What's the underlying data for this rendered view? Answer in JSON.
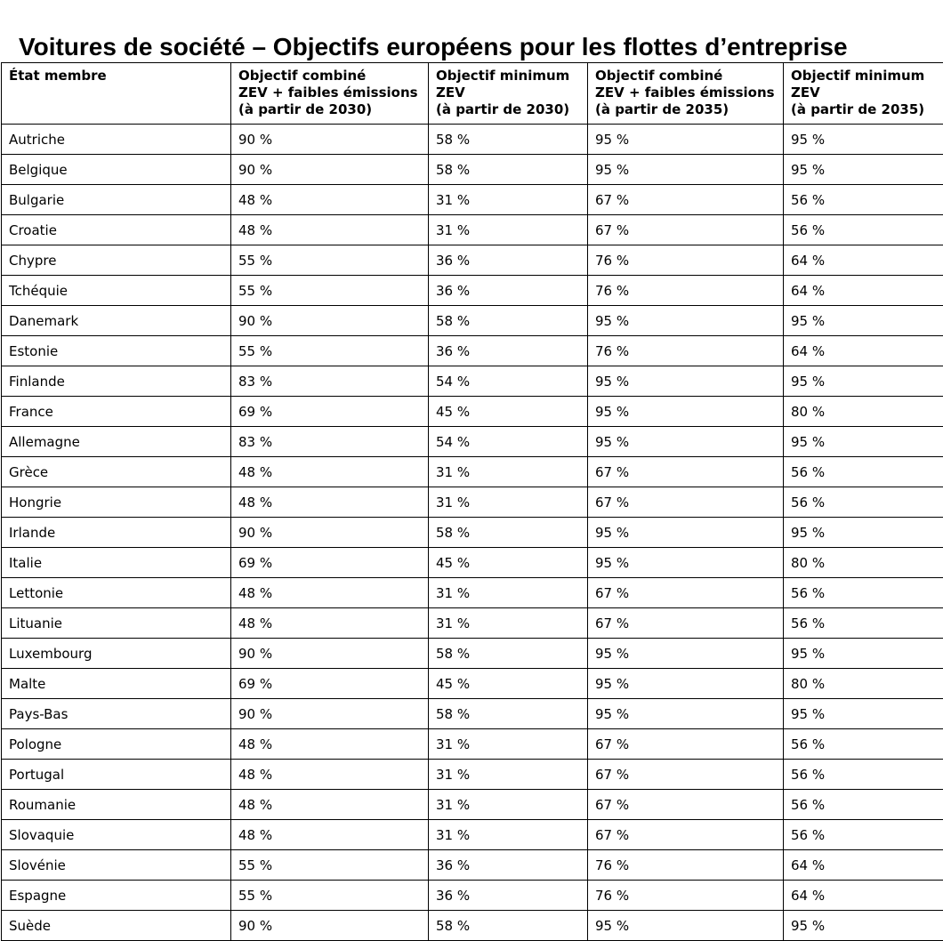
{
  "page": {
    "title": "Voitures de société – Objectifs européens pour les flottes d’entreprise"
  },
  "colors": {
    "text": "#000000",
    "border": "#000000",
    "background": "#ffffff"
  },
  "table": {
    "columns": [
      {
        "key": "state",
        "label": "État membre"
      },
      {
        "key": "combined_2030",
        "label": "Objectif combiné\nZEV + faibles émissions\n(à partir de 2030)"
      },
      {
        "key": "zev_min_2030",
        "label": "Objectif minimum\nZEV\n(à partir de 2030)"
      },
      {
        "key": "combined_2035",
        "label": "Objectif combiné\nZEV + faibles émissions\n(à partir de 2035)"
      },
      {
        "key": "zev_min_2035",
        "label": "Objectif minimum\nZEV\n(à partir de 2035)"
      }
    ],
    "rows": [
      {
        "state": "Autriche",
        "combined_2030": "90 %",
        "zev_min_2030": "58 %",
        "combined_2035": "95 %",
        "zev_min_2035": "95 %"
      },
      {
        "state": "Belgique",
        "combined_2030": "90 %",
        "zev_min_2030": "58 %",
        "combined_2035": "95 %",
        "zev_min_2035": "95 %"
      },
      {
        "state": "Bulgarie",
        "combined_2030": "48 %",
        "zev_min_2030": "31 %",
        "combined_2035": "67 %",
        "zev_min_2035": "56 %"
      },
      {
        "state": "Croatie",
        "combined_2030": "48 %",
        "zev_min_2030": "31 %",
        "combined_2035": "67 %",
        "zev_min_2035": "56 %"
      },
      {
        "state": "Chypre",
        "combined_2030": "55 %",
        "zev_min_2030": "36 %",
        "combined_2035": "76 %",
        "zev_min_2035": "64 %"
      },
      {
        "state": "Tchéquie",
        "combined_2030": "55 %",
        "zev_min_2030": "36 %",
        "combined_2035": "76 %",
        "zev_min_2035": "64 %"
      },
      {
        "state": "Danemark",
        "combined_2030": "90 %",
        "zev_min_2030": "58 %",
        "combined_2035": "95 %",
        "zev_min_2035": "95 %"
      },
      {
        "state": "Estonie",
        "combined_2030": "55 %",
        "zev_min_2030": "36 %",
        "combined_2035": "76 %",
        "zev_min_2035": "64 %"
      },
      {
        "state": "Finlande",
        "combined_2030": "83 %",
        "zev_min_2030": "54 %",
        "combined_2035": "95 %",
        "zev_min_2035": "95 %"
      },
      {
        "state": "France",
        "combined_2030": "69 %",
        "zev_min_2030": "45 %",
        "combined_2035": "95 %",
        "zev_min_2035": "80 %"
      },
      {
        "state": "Allemagne",
        "combined_2030": "83 %",
        "zev_min_2030": "54 %",
        "combined_2035": "95 %",
        "zev_min_2035": "95 %"
      },
      {
        "state": "Grèce",
        "combined_2030": "48 %",
        "zev_min_2030": "31 %",
        "combined_2035": "67 %",
        "zev_min_2035": "56 %"
      },
      {
        "state": "Hongrie",
        "combined_2030": "48 %",
        "zev_min_2030": "31 %",
        "combined_2035": "67 %",
        "zev_min_2035": "56 %"
      },
      {
        "state": "Irlande",
        "combined_2030": "90 %",
        "zev_min_2030": "58 %",
        "combined_2035": "95 %",
        "zev_min_2035": "95 %"
      },
      {
        "state": "Italie",
        "combined_2030": "69 %",
        "zev_min_2030": "45 %",
        "combined_2035": "95 %",
        "zev_min_2035": "80 %"
      },
      {
        "state": "Lettonie",
        "combined_2030": "48 %",
        "zev_min_2030": "31 %",
        "combined_2035": "67 %",
        "zev_min_2035": "56 %"
      },
      {
        "state": "Lituanie",
        "combined_2030": "48 %",
        "zev_min_2030": "31 %",
        "combined_2035": "67 %",
        "zev_min_2035": "56 %"
      },
      {
        "state": "Luxembourg",
        "combined_2030": "90 %",
        "zev_min_2030": "58 %",
        "combined_2035": "95 %",
        "zev_min_2035": "95 %"
      },
      {
        "state": "Malte",
        "combined_2030": "69 %",
        "zev_min_2030": "45 %",
        "combined_2035": "95 %",
        "zev_min_2035": "80 %"
      },
      {
        "state": "Pays-Bas",
        "combined_2030": "90 %",
        "zev_min_2030": "58 %",
        "combined_2035": "95 %",
        "zev_min_2035": "95 %"
      },
      {
        "state": "Pologne",
        "combined_2030": "48 %",
        "zev_min_2030": "31 %",
        "combined_2035": "67 %",
        "zev_min_2035": "56 %"
      },
      {
        "state": "Portugal",
        "combined_2030": "48 %",
        "zev_min_2030": "31 %",
        "combined_2035": "67 %",
        "zev_min_2035": "56 %"
      },
      {
        "state": "Roumanie",
        "combined_2030": "48 %",
        "zev_min_2030": "31 %",
        "combined_2035": "67 %",
        "zev_min_2035": "56 %"
      },
      {
        "state": "Slovaquie",
        "combined_2030": "48 %",
        "zev_min_2030": "31 %",
        "combined_2035": "67 %",
        "zev_min_2035": "56 %"
      },
      {
        "state": "Slovénie",
        "combined_2030": "55 %",
        "zev_min_2030": "36 %",
        "combined_2035": "76 %",
        "zev_min_2035": "64 %"
      },
      {
        "state": "Espagne",
        "combined_2030": "55 %",
        "zev_min_2030": "36 %",
        "combined_2035": "76 %",
        "zev_min_2035": "64 %"
      },
      {
        "state": "Suède",
        "combined_2030": "90 %",
        "zev_min_2030": "58 %",
        "combined_2035": "95 %",
        "zev_min_2035": "95 %"
      }
    ]
  }
}
